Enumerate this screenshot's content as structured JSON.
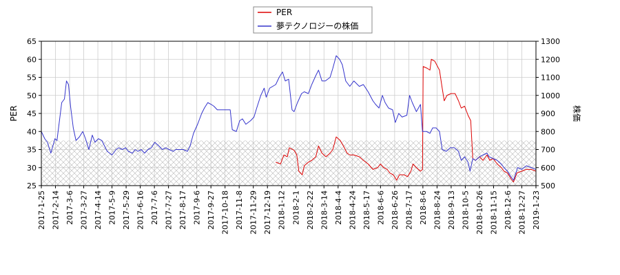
{
  "chart_data": {
    "type": "line",
    "legend": {
      "placement": "top-center",
      "entries": [
        {
          "label": "PER",
          "color": "#dd0000"
        },
        {
          "label": "夢テクノロジーの株価",
          "color": "#3333cc"
        }
      ]
    },
    "y_left": {
      "label": "PER",
      "range": [
        25,
        65
      ],
      "ticks": [
        "25",
        "30",
        "35",
        "40",
        "45",
        "50",
        "55",
        "60",
        "65"
      ]
    },
    "y_right": {
      "label": "株価",
      "range": [
        500,
        1300
      ],
      "ticks": [
        "500",
        "600",
        "700",
        "800",
        "900",
        "1000",
        "1100",
        "1200",
        "1300"
      ]
    },
    "x_axis": {
      "range": [
        "2017-01-25",
        "2019-01-23"
      ],
      "tick_labels": [
        "2017-1-25",
        "2017-2-14",
        "2017-3-6",
        "2017-3-27",
        "2017-4-14",
        "2017-5-9",
        "2017-5-29",
        "2017-6-16",
        "2017-7-6",
        "2017-7-27",
        "2017-8-17",
        "2017-9-6",
        "2017-9-27",
        "2017-10-18",
        "2017-11-8",
        "2017-11-29",
        "2017-12-19",
        "2018-1-12",
        "2018-2-1",
        "2018-2-22",
        "2018-3-14",
        "2018-4-4",
        "2018-4-24",
        "2018-5-17",
        "2018-6-6",
        "2018-6-26",
        "2018-7-17",
        "2018-8-6",
        "2018-8-24",
        "2018-9-13",
        "2018-10-5",
        "2018-10-26",
        "2018-11-15",
        "2018-12-6",
        "2018-12-27",
        "2019-1-23"
      ]
    },
    "grid": true,
    "hatched_band": {
      "y_from": 25,
      "y_to": 37.5,
      "axis": "left"
    },
    "series": [
      {
        "name": "PER",
        "axis": "left",
        "color": "#dd0000",
        "points": [
          [
            "2018-01-05",
            31.5
          ],
          [
            "2018-01-12",
            31.0
          ],
          [
            "2018-01-17",
            33.5
          ],
          [
            "2018-01-22",
            33.0
          ],
          [
            "2018-01-25",
            35.5
          ],
          [
            "2018-02-01",
            34.8
          ],
          [
            "2018-02-05",
            33.5
          ],
          [
            "2018-02-08",
            29.0
          ],
          [
            "2018-02-13",
            28.0
          ],
          [
            "2018-02-16",
            30.5
          ],
          [
            "2018-02-22",
            31.5
          ],
          [
            "2018-02-27",
            32.0
          ],
          [
            "2018-03-05",
            33.0
          ],
          [
            "2018-03-09",
            36.0
          ],
          [
            "2018-03-14",
            34.0
          ],
          [
            "2018-03-20",
            33.0
          ],
          [
            "2018-03-26",
            34.0
          ],
          [
            "2018-03-30",
            35.0
          ],
          [
            "2018-04-04",
            38.5
          ],
          [
            "2018-04-10",
            37.5
          ],
          [
            "2018-04-16",
            35.5
          ],
          [
            "2018-04-20",
            34.0
          ],
          [
            "2018-04-24",
            33.5
          ],
          [
            "2018-04-30",
            33.5
          ],
          [
            "2018-05-08",
            33.0
          ],
          [
            "2018-05-14",
            32.0
          ],
          [
            "2018-05-21",
            31.0
          ],
          [
            "2018-05-28",
            29.5
          ],
          [
            "2018-06-04",
            30.0
          ],
          [
            "2018-06-08",
            31.0
          ],
          [
            "2018-06-13",
            30.0
          ],
          [
            "2018-06-18",
            29.5
          ],
          [
            "2018-06-22",
            28.5
          ],
          [
            "2018-06-27",
            28.0
          ],
          [
            "2018-07-02",
            26.5
          ],
          [
            "2018-07-06",
            28.0
          ],
          [
            "2018-07-13",
            28.0
          ],
          [
            "2018-07-18",
            27.5
          ],
          [
            "2018-07-23",
            29.0
          ],
          [
            "2018-07-26",
            31.0
          ],
          [
            "2018-07-31",
            30.0
          ],
          [
            "2018-08-06",
            29.0
          ],
          [
            "2018-08-09",
            29.5
          ],
          [
            "2018-08-10",
            58.0
          ],
          [
            "2018-08-16",
            57.5
          ],
          [
            "2018-08-20",
            57.0
          ],
          [
            "2018-08-22",
            60.0
          ],
          [
            "2018-08-27",
            59.5
          ],
          [
            "2018-09-03",
            57.0
          ],
          [
            "2018-09-07",
            52.0
          ],
          [
            "2018-09-10",
            48.5
          ],
          [
            "2018-09-14",
            50.0
          ],
          [
            "2018-09-20",
            50.5
          ],
          [
            "2018-09-26",
            50.5
          ],
          [
            "2018-10-01",
            48.5
          ],
          [
            "2018-10-05",
            46.5
          ],
          [
            "2018-10-10",
            47.0
          ],
          [
            "2018-10-15",
            44.5
          ],
          [
            "2018-10-19",
            43.0
          ],
          [
            "2018-10-22",
            32.5
          ],
          [
            "2018-10-26",
            32.0
          ],
          [
            "2018-11-01",
            33.0
          ],
          [
            "2018-11-06",
            32.0
          ],
          [
            "2018-11-12",
            33.5
          ],
          [
            "2018-11-16",
            32.0
          ],
          [
            "2018-11-21",
            32.5
          ],
          [
            "2018-11-27",
            31.0
          ],
          [
            "2018-12-03",
            30.0
          ],
          [
            "2018-12-07",
            29.0
          ],
          [
            "2018-12-12",
            28.5
          ],
          [
            "2018-12-17",
            27.0
          ],
          [
            "2018-12-21",
            26.0
          ],
          [
            "2018-12-26",
            28.5
          ],
          [
            "2019-01-02",
            29.0
          ],
          [
            "2019-01-09",
            29.5
          ],
          [
            "2019-01-16",
            29.5
          ],
          [
            "2019-01-23",
            29.0
          ]
        ]
      },
      {
        "name": "夢テクノロジーの株価",
        "axis": "right",
        "color": "#3333cc",
        "points": [
          [
            "2017-01-25",
            800
          ],
          [
            "2017-01-30",
            760
          ],
          [
            "2017-02-03",
            740
          ],
          [
            "2017-02-08",
            680
          ],
          [
            "2017-02-14",
            760
          ],
          [
            "2017-02-17",
            750
          ],
          [
            "2017-02-21",
            870
          ],
          [
            "2017-02-24",
            960
          ],
          [
            "2017-02-28",
            980
          ],
          [
            "2017-03-03",
            1080
          ],
          [
            "2017-03-06",
            1060
          ],
          [
            "2017-03-09",
            940
          ],
          [
            "2017-03-13",
            820
          ],
          [
            "2017-03-17",
            750
          ],
          [
            "2017-03-22",
            770
          ],
          [
            "2017-03-27",
            800
          ],
          [
            "2017-03-31",
            760
          ],
          [
            "2017-04-05",
            700
          ],
          [
            "2017-04-10",
            780
          ],
          [
            "2017-04-14",
            740
          ],
          [
            "2017-04-19",
            760
          ],
          [
            "2017-04-24",
            750
          ],
          [
            "2017-04-28",
            720
          ],
          [
            "2017-05-02",
            690
          ],
          [
            "2017-05-09",
            670
          ],
          [
            "2017-05-15",
            700
          ],
          [
            "2017-05-19",
            710
          ],
          [
            "2017-05-24",
            700
          ],
          [
            "2017-05-29",
            710
          ],
          [
            "2017-06-02",
            690
          ],
          [
            "2017-06-08",
            680
          ],
          [
            "2017-06-12",
            700
          ],
          [
            "2017-06-16",
            690
          ],
          [
            "2017-06-21",
            700
          ],
          [
            "2017-06-26",
            680
          ],
          [
            "2017-07-01",
            700
          ],
          [
            "2017-07-06",
            710
          ],
          [
            "2017-07-11",
            740
          ],
          [
            "2017-07-17",
            720
          ],
          [
            "2017-07-22",
            700
          ],
          [
            "2017-07-27",
            710
          ],
          [
            "2017-08-01",
            700
          ],
          [
            "2017-08-07",
            690
          ],
          [
            "2017-08-11",
            700
          ],
          [
            "2017-08-17",
            700
          ],
          [
            "2017-08-22",
            700
          ],
          [
            "2017-08-28",
            690
          ],
          [
            "2017-09-01",
            720
          ],
          [
            "2017-09-06",
            790
          ],
          [
            "2017-09-12",
            840
          ],
          [
            "2017-09-18",
            900
          ],
          [
            "2017-09-22",
            930
          ],
          [
            "2017-09-27",
            960
          ],
          [
            "2017-10-02",
            950
          ],
          [
            "2017-10-06",
            940
          ],
          [
            "2017-10-11",
            920
          ],
          [
            "2017-10-18",
            920
          ],
          [
            "2017-10-24",
            920
          ],
          [
            "2017-10-30",
            920
          ],
          [
            "2017-11-02",
            810
          ],
          [
            "2017-11-08",
            800
          ],
          [
            "2017-11-13",
            860
          ],
          [
            "2017-11-17",
            870
          ],
          [
            "2017-11-22",
            840
          ],
          [
            "2017-11-29",
            860
          ],
          [
            "2017-12-04",
            880
          ],
          [
            "2017-12-08",
            930
          ],
          [
            "2017-12-14",
            1000
          ],
          [
            "2017-12-19",
            1040
          ],
          [
            "2017-12-22",
            990
          ],
          [
            "2017-12-27",
            1040
          ],
          [
            "2018-01-05",
            1060
          ],
          [
            "2018-01-10",
            1100
          ],
          [
            "2018-01-15",
            1130
          ],
          [
            "2018-01-19",
            1080
          ],
          [
            "2018-01-24",
            1090
          ],
          [
            "2018-01-29",
            920
          ],
          [
            "2018-02-01",
            910
          ],
          [
            "2018-02-06",
            960
          ],
          [
            "2018-02-12",
            1010
          ],
          [
            "2018-02-16",
            1020
          ],
          [
            "2018-02-22",
            1010
          ],
          [
            "2018-02-27",
            1060
          ],
          [
            "2018-03-05",
            1110
          ],
          [
            "2018-03-09",
            1140
          ],
          [
            "2018-03-14",
            1080
          ],
          [
            "2018-03-19",
            1080
          ],
          [
            "2018-03-26",
            1100
          ],
          [
            "2018-03-30",
            1150
          ],
          [
            "2018-04-04",
            1220
          ],
          [
            "2018-04-09",
            1200
          ],
          [
            "2018-04-13",
            1170
          ],
          [
            "2018-04-18",
            1080
          ],
          [
            "2018-04-24",
            1050
          ],
          [
            "2018-04-30",
            1080
          ],
          [
            "2018-05-08",
            1050
          ],
          [
            "2018-05-14",
            1060
          ],
          [
            "2018-05-21",
            1020
          ],
          [
            "2018-05-28",
            970
          ],
          [
            "2018-06-01",
            950
          ],
          [
            "2018-06-06",
            930
          ],
          [
            "2018-06-11",
            1000
          ],
          [
            "2018-06-15",
            960
          ],
          [
            "2018-06-20",
            930
          ],
          [
            "2018-06-26",
            920
          ],
          [
            "2018-06-30",
            850
          ],
          [
            "2018-07-05",
            900
          ],
          [
            "2018-07-10",
            880
          ],
          [
            "2018-07-17",
            890
          ],
          [
            "2018-07-21",
            1000
          ],
          [
            "2018-07-25",
            960
          ],
          [
            "2018-07-31",
            910
          ],
          [
            "2018-08-06",
            950
          ],
          [
            "2018-08-09",
            800
          ],
          [
            "2018-08-15",
            800
          ],
          [
            "2018-08-20",
            790
          ],
          [
            "2018-08-24",
            820
          ],
          [
            "2018-08-29",
            820
          ],
          [
            "2018-09-03",
            800
          ],
          [
            "2018-09-07",
            700
          ],
          [
            "2018-09-13",
            690
          ],
          [
            "2018-09-19",
            710
          ],
          [
            "2018-09-25",
            710
          ],
          [
            "2018-10-01",
            690
          ],
          [
            "2018-10-05",
            640
          ],
          [
            "2018-10-10",
            660
          ],
          [
            "2018-10-15",
            630
          ],
          [
            "2018-10-18",
            580
          ],
          [
            "2018-10-22",
            650
          ],
          [
            "2018-10-26",
            640
          ],
          [
            "2018-11-01",
            660
          ],
          [
            "2018-11-06",
            670
          ],
          [
            "2018-11-12",
            680
          ],
          [
            "2018-11-15",
            660
          ],
          [
            "2018-11-21",
            650
          ],
          [
            "2018-11-27",
            640
          ],
          [
            "2018-12-03",
            620
          ],
          [
            "2018-12-07",
            600
          ],
          [
            "2018-12-12",
            580
          ],
          [
            "2018-12-17",
            550
          ],
          [
            "2018-12-21",
            530
          ],
          [
            "2018-12-27",
            600
          ],
          [
            "2019-01-02",
            590
          ],
          [
            "2019-01-09",
            610
          ],
          [
            "2019-01-16",
            600
          ],
          [
            "2019-01-23",
            590
          ]
        ]
      }
    ]
  }
}
